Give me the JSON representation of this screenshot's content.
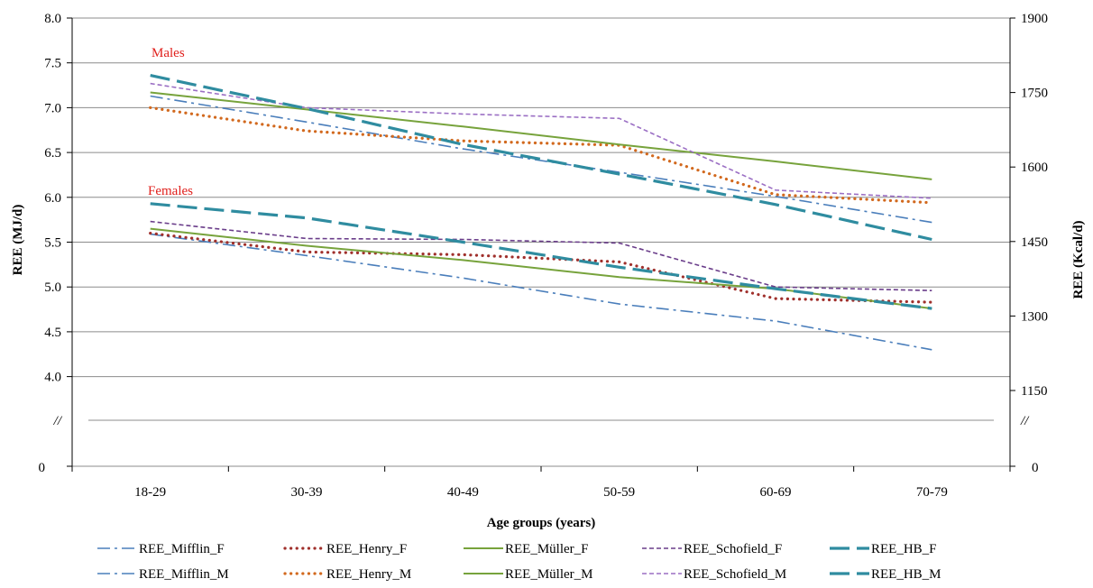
{
  "chart_data": {
    "type": "line",
    "categories": [
      "18-29",
      "30-39",
      "40-49",
      "50-59",
      "60-69",
      "70-79"
    ],
    "xlabel": "Age groups (years)",
    "ylabel": "REE (MJ/d)",
    "ylabel_right": "REE (Kcal/d)",
    "ylim": [
      3.5,
      8.0
    ],
    "yticks": [
      "8.0",
      "7.5",
      "7.0",
      "6.5",
      "6.0",
      "5.5",
      "5.0",
      "4.5",
      "4.0"
    ],
    "yticks_right": [
      "1900",
      "1750",
      "1600",
      "1450",
      "1300",
      "1150"
    ],
    "y_bottom_label": "0",
    "y_bottom_label_right": "0",
    "axis_break_mark": "//",
    "annotations": [
      {
        "text": "Males",
        "near": "18-29 upper"
      },
      {
        "text": "Females",
        "near": "18-29 lower"
      }
    ],
    "grid": true,
    "legend_position": "bottom",
    "series": [
      {
        "name": "REE_Mifflin_F",
        "color": "#4a7ebb",
        "style": "dashdot",
        "values": [
          5.59,
          5.35,
          5.1,
          4.81,
          4.62,
          4.3
        ]
      },
      {
        "name": "REE_Henry_F",
        "color": "#a0302c",
        "style": "dotted",
        "values": [
          5.6,
          5.39,
          5.36,
          5.28,
          4.87,
          4.83
        ]
      },
      {
        "name": "REE_Müller_F",
        "color": "#77a33c",
        "style": "solid",
        "values": [
          5.65,
          5.46,
          5.3,
          5.11,
          4.98,
          4.76
        ]
      },
      {
        "name": "REE_Schofield_F",
        "color": "#6a3d8a",
        "style": "shortdash",
        "values": [
          5.73,
          5.54,
          5.53,
          5.49,
          5.0,
          4.96
        ]
      },
      {
        "name": "REE_HB_F",
        "color": "#2f8ca0",
        "style": "longdash",
        "values": [
          5.93,
          5.77,
          5.5,
          5.22,
          4.98,
          4.76
        ]
      },
      {
        "name": "REE_Mifflin_M",
        "color": "#4a7ebb",
        "style": "dashdot",
        "values": [
          7.13,
          6.84,
          6.54,
          6.28,
          6.01,
          5.72
        ]
      },
      {
        "name": "REE_Henry_M",
        "color": "#d2691e",
        "style": "dotted",
        "values": [
          7.0,
          6.74,
          6.63,
          6.58,
          6.03,
          5.94
        ]
      },
      {
        "name": "REE_Müller_M",
        "color": "#77a33c",
        "style": "solid",
        "values": [
          7.17,
          6.98,
          6.79,
          6.59,
          6.4,
          6.2
        ]
      },
      {
        "name": "REE_Schofield_M",
        "color": "#9b6fc4",
        "style": "shortdash",
        "values": [
          7.27,
          7.0,
          6.93,
          6.88,
          6.08,
          5.99
        ]
      },
      {
        "name": "REE_HB_M",
        "color": "#2f8ca0",
        "style": "longdash",
        "values": [
          7.36,
          6.99,
          6.59,
          6.26,
          5.92,
          5.53
        ]
      }
    ]
  }
}
